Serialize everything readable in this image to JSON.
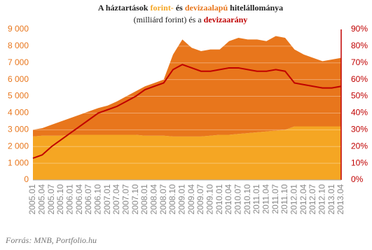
{
  "chart_data": {
    "type": "stacked-area-line",
    "title": [
      "A háztartások ",
      "forint-",
      " és ",
      "devizaalapú",
      " hitelállománya"
    ],
    "subtitle": [
      "(milliárd forint) és a ",
      "devizaarány"
    ],
    "source": "Forrás: MNB, Portfolio.hu",
    "categories": [
      "2005.01",
      "2005.04",
      "2005.07",
      "2005.10",
      "2006.01",
      "2006.04",
      "2006.07",
      "2006.10",
      "2007.01",
      "2007.04",
      "2007.07",
      "2007.10",
      "2008.01",
      "2008.04",
      "2008.07",
      "2008.10",
      "2009.01",
      "2009.04",
      "2009.07",
      "2009.10",
      "2010.01",
      "2010.04",
      "2010.07",
      "2010.10",
      "2011.01",
      "2011.04",
      "2011.07",
      "2011.10",
      "2012.01",
      "2012.04",
      "2012.07",
      "2012.10",
      "2013.01",
      "2013.04"
    ],
    "series": [
      {
        "color": "#f5a623",
        "values": [
          2600,
          2650,
          2650,
          2650,
          2700,
          2700,
          2700,
          2700,
          2700,
          2700,
          2700,
          2700,
          2650,
          2650,
          2650,
          2600,
          2600,
          2600,
          2600,
          2650,
          2700,
          2700,
          2750,
          2800,
          2850,
          2900,
          2950,
          3000,
          3200,
          3200,
          3200,
          3200,
          3200,
          3200
        ]
      },
      {
        "color": "#e8761c",
        "values": [
          400,
          450,
          650,
          850,
          1000,
          1200,
          1400,
          1600,
          1750,
          2000,
          2300,
          2600,
          2950,
          3150,
          3350,
          4900,
          5800,
          5300,
          5100,
          5150,
          5100,
          5600,
          5750,
          5600,
          5550,
          5400,
          5650,
          5500,
          4600,
          4300,
          4100,
          3900,
          4000,
          4100
        ]
      },
      {
        "color": "#c00000",
        "axis": "y2",
        "values": [
          13,
          15,
          20,
          24,
          28,
          32,
          36,
          40,
          42,
          44,
          47,
          50,
          54,
          56,
          58,
          66,
          69,
          67,
          65,
          65,
          66,
          67,
          67,
          66,
          65,
          65,
          66,
          65,
          58,
          57,
          56,
          55,
          55,
          56
        ]
      }
    ],
    "ylim": [
      0,
      9000
    ],
    "yticks": [
      0,
      {
        "value": 1000,
        "label": "1 000"
      },
      {
        "value": 2000,
        "label": "2 000"
      },
      {
        "value": 3000,
        "label": "3 000"
      },
      {
        "value": 4000,
        "label": "4 000"
      },
      {
        "value": 5000,
        "label": "5 000"
      },
      {
        "value": 6000,
        "label": "6 000"
      },
      {
        "value": 7000,
        "label": "7 000"
      },
      {
        "value": 8000,
        "label": "8 000"
      },
      {
        "value": 9000,
        "label": "9 000"
      }
    ],
    "y2lim": [
      0,
      90
    ],
    "y2ticks": [
      {
        "value": 0,
        "label": "0%"
      },
      {
        "value": 10,
        "label": "10%"
      },
      {
        "value": 20,
        "label": "20%"
      },
      {
        "value": 30,
        "label": "30%"
      },
      {
        "value": 40,
        "label": "40%"
      },
      {
        "value": 50,
        "label": "50%"
      },
      {
        "value": 60,
        "label": "60%"
      },
      {
        "value": 70,
        "label": "70%"
      },
      {
        "value": 80,
        "label": "80%"
      },
      {
        "value": 90,
        "label": "90%"
      }
    ],
    "grid": true
  }
}
